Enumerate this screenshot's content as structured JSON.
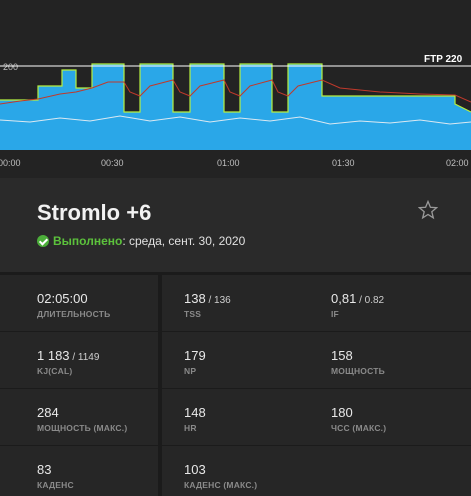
{
  "chart": {
    "ftp_label": "FTP 220",
    "threshold_tick": "200",
    "time_ticks": [
      "00:00",
      "00:30",
      "01:00",
      "01:30",
      "02:00"
    ]
  },
  "workout": {
    "title": "Stromlo +6",
    "status": "Выполнено",
    "date_text": " : среда, сент. 30, 2020",
    "favorite_icon": "star-outline-icon"
  },
  "metrics": [
    {
      "value": "02:05:00",
      "sub": "",
      "label": "ДЛИТЕЛЬНОСТЬ"
    },
    {
      "value": "138",
      "sub": " / 136",
      "label": "TSS"
    },
    {
      "value": "0,81",
      "sub": " / 0.82",
      "label": "IF"
    },
    {
      "value": "1 183",
      "sub": " / 1149",
      "label": "KJ(CAL)"
    },
    {
      "value": "179",
      "sub": "",
      "label": "NP"
    },
    {
      "value": "158",
      "sub": "",
      "label": "МОЩНОСТЬ"
    },
    {
      "value": "284",
      "sub": "",
      "label": "МОЩНОСТЬ (МАКС.)"
    },
    {
      "value": "148",
      "sub": "",
      "label": "HR"
    },
    {
      "value": "180",
      "sub": "",
      "label": "ЧСС (МАКС.)"
    },
    {
      "value": "83",
      "sub": "",
      "label": "КАДЕНС"
    },
    {
      "value": "103",
      "sub": "",
      "label": "КАДЕНС (МАКС.)"
    }
  ],
  "colors": {
    "power_fill": "#2aa7e8",
    "power_line": "#b6f040",
    "hr_line": "#c0392b",
    "cadence_line": "#dbe9f2",
    "status_green": "#5cc23c"
  }
}
